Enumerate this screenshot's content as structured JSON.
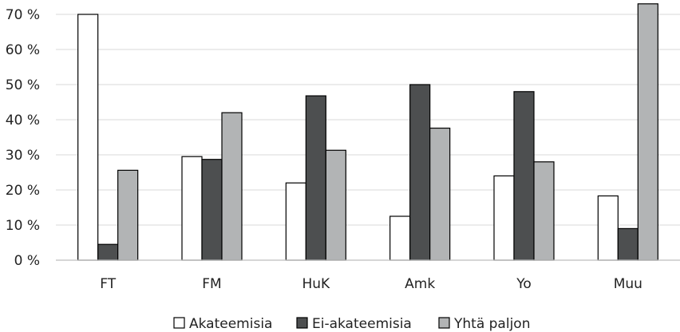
{
  "chart_data": {
    "type": "bar",
    "categories": [
      "FT",
      "FM",
      "HuK",
      "Amk",
      "Yo",
      "Muu"
    ],
    "series": [
      {
        "name": "Akateemisia",
        "values": [
          70,
          29.5,
          22,
          12.5,
          24,
          18.3
        ],
        "color": "#ffffff"
      },
      {
        "name": "Ei-akateemisia",
        "values": [
          4.5,
          28.7,
          46.8,
          50,
          48,
          9
        ],
        "color": "#4d4f50"
      },
      {
        "name": "Yhtä paljon",
        "values": [
          25.6,
          42,
          31.3,
          37.6,
          28,
          73
        ],
        "color": "#b2b4b5"
      }
    ],
    "y_ticks": [
      "0 %",
      "10 %",
      "20 %",
      "30 %",
      "40 %",
      "50 %",
      "60 %",
      "70 %"
    ],
    "ylim": [
      0,
      70
    ],
    "grid": true,
    "legend_position": "bottom",
    "title": "",
    "xlabel": "",
    "ylabel": ""
  }
}
